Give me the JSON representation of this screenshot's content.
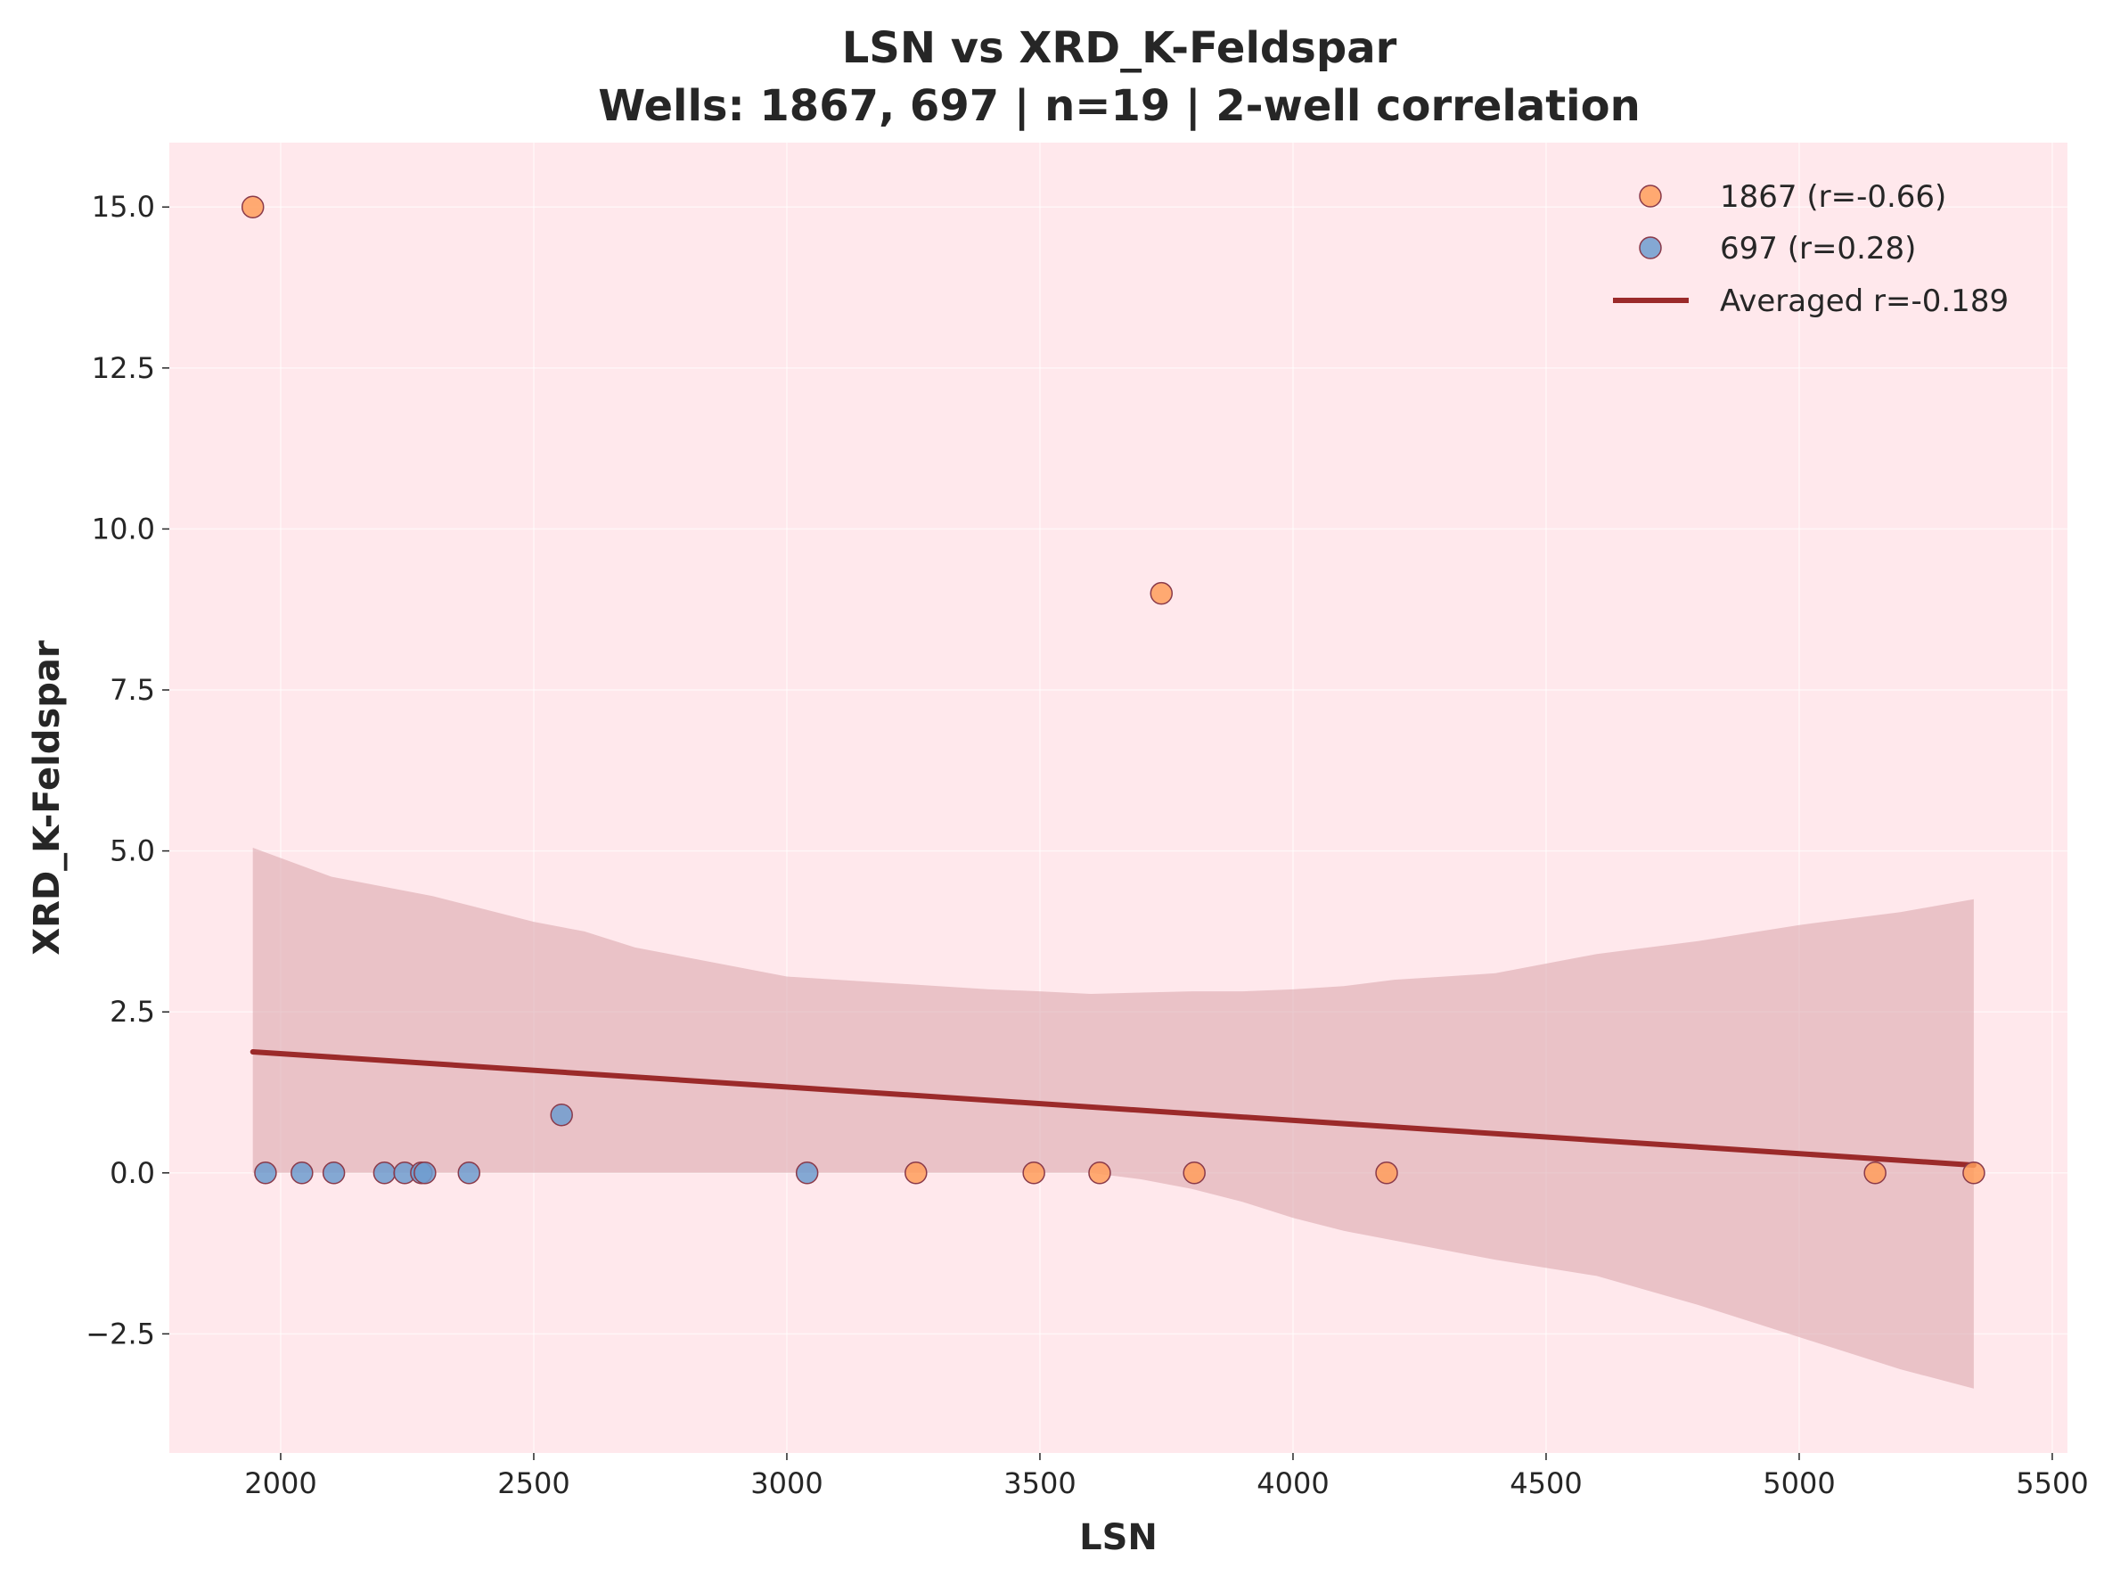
{
  "chart_data": {
    "type": "scatter",
    "title": "LSN vs XRD_K-Feldspar",
    "subtitle": "Wells: 1867, 697 | n=19 | 2-well correlation",
    "xlabel": "LSN",
    "ylabel": "XRD_K-Feldspar",
    "xlim": [
      1780,
      5530
    ],
    "ylim": [
      -4.35,
      16.0
    ],
    "xticks": [
      2000,
      2500,
      3000,
      3500,
      4000,
      4500,
      5000,
      5500
    ],
    "xtick_labels": [
      "2000",
      "2500",
      "3000",
      "3500",
      "4000",
      "4500",
      "5000",
      "5500"
    ],
    "yticks": [
      -2.5,
      0.0,
      2.5,
      5.0,
      7.5,
      10.0,
      12.5,
      15.0
    ],
    "ytick_labels": [
      "−2.5",
      "0.0",
      "2.5",
      "5.0",
      "7.5",
      "10.0",
      "12.5",
      "15.0"
    ],
    "grid": true,
    "legend_position": "top-right",
    "background_color": "#ffe8ec",
    "series": [
      {
        "name": "1867 (r=-0.66)",
        "color": "#ff9e5c",
        "points": [
          {
            "x": 1945,
            "y": 15.0
          },
          {
            "x": 3740,
            "y": 9.0
          },
          {
            "x": 3255,
            "y": 0.0
          },
          {
            "x": 3488,
            "y": 0.0
          },
          {
            "x": 3618,
            "y": 0.0
          },
          {
            "x": 3805,
            "y": 0.0
          },
          {
            "x": 4185,
            "y": 0.0
          },
          {
            "x": 5150,
            "y": 0.0
          },
          {
            "x": 5345,
            "y": 0.0
          }
        ]
      },
      {
        "name": "697 (r=0.28)",
        "color": "#6e9ccf",
        "points": [
          {
            "x": 1970,
            "y": 0.0
          },
          {
            "x": 2042,
            "y": 0.0
          },
          {
            "x": 2105,
            "y": 0.0
          },
          {
            "x": 2205,
            "y": 0.0
          },
          {
            "x": 2245,
            "y": 0.0
          },
          {
            "x": 2278,
            "y": 0.0
          },
          {
            "x": 2285,
            "y": 0.0
          },
          {
            "x": 2372,
            "y": 0.0
          },
          {
            "x": 2555,
            "y": 0.9
          },
          {
            "x": 3040,
            "y": 0.0
          }
        ]
      }
    ],
    "fit_line": {
      "name": "Averaged r=-0.189",
      "color": "#9b2a2a",
      "x": [
        1945,
        5345
      ],
      "y": [
        1.88,
        0.12
      ]
    },
    "confidence_band": {
      "color": "#d9a3aa",
      "x": [
        1945,
        2100,
        2300,
        2500,
        2600,
        2700,
        2900,
        3000,
        3200,
        3400,
        3500,
        3600,
        3700,
        3800,
        3900,
        4000,
        4100,
        4200,
        4300,
        4400,
        4600,
        4800,
        5000,
        5200,
        5345
      ],
      "upper": [
        5.05,
        4.6,
        4.3,
        3.9,
        3.75,
        3.5,
        3.2,
        3.05,
        2.95,
        2.85,
        2.82,
        2.78,
        2.8,
        2.82,
        2.82,
        2.85,
        2.9,
        3.0,
        3.05,
        3.1,
        3.4,
        3.6,
        3.85,
        4.05,
        4.25
      ],
      "lower": [
        0.0,
        0.0,
        0.0,
        0.0,
        0.0,
        0.0,
        0.0,
        0.0,
        0.0,
        0.0,
        0.0,
        0.0,
        -0.1,
        -0.25,
        -0.45,
        -0.7,
        -0.9,
        -1.05,
        -1.2,
        -1.35,
        -1.6,
        -2.05,
        -2.55,
        -3.05,
        -3.35
      ]
    }
  }
}
